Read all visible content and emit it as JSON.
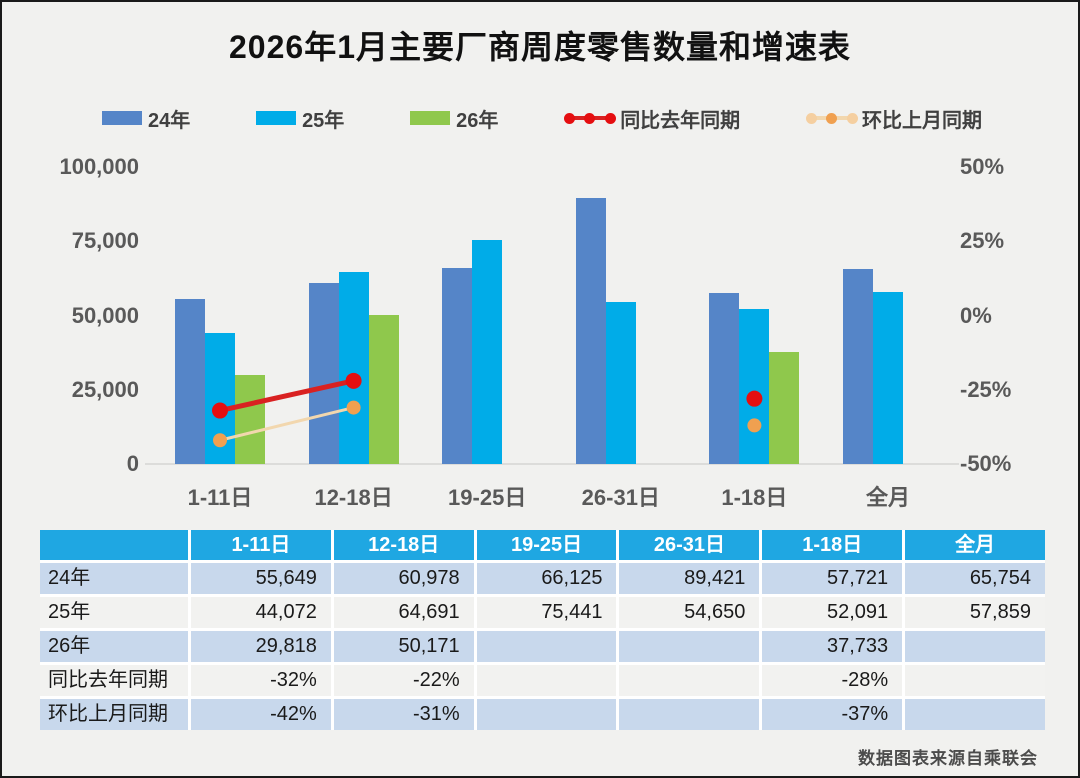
{
  "page": {
    "title": "2026年1月主要厂商周度零售数量和增速表",
    "footer": "数据图表来源自乘联会"
  },
  "colors": {
    "background": "#F1F1EF",
    "bar_24": "#5585C8",
    "bar_25": "#00ACE8",
    "bar_26": "#8FC84C",
    "yoy_line": "#D92121",
    "yoy_dot": "#E50E10",
    "mom_line": "#F2D7AE",
    "mom_dot": "#F0A050",
    "mom_dot_pale": "#F5CFA0",
    "table_header_bg": "#1FA7E2",
    "table_row_shaded": "#C8D8EC",
    "table_row_plain": "#F2F2F0",
    "axis_text": "#595959",
    "axis_line": "#DCDCDA"
  },
  "legend": {
    "items": [
      {
        "label": "24年",
        "type": "bar",
        "color": "#5585C8"
      },
      {
        "label": "25年",
        "type": "bar",
        "color": "#00ACE8"
      },
      {
        "label": "26年",
        "type": "bar",
        "color": "#8FC84C"
      },
      {
        "label": "同比去年同期",
        "type": "line",
        "dot_color": "#E50E10",
        "line_color": "#D92121",
        "uniform_dots": true
      },
      {
        "label": "环比上月同期",
        "type": "line",
        "dot_color": "#F0A050",
        "line_color": "#F2D7AE",
        "uniform_dots": false,
        "pale_dot_color": "#F5CFA0"
      }
    ]
  },
  "chart_data": {
    "type": "bar",
    "title": "2026年1月主要厂商周度零售数量和增速表",
    "categories": [
      "1-11日",
      "12-18日",
      "19-25日",
      "26-31日",
      "1-18日",
      "全月"
    ],
    "series": [
      {
        "name": "24年",
        "kind": "bar",
        "color": "#5585C8",
        "values": [
          55649,
          60978,
          66125,
          89421,
          57721,
          65754
        ]
      },
      {
        "name": "25年",
        "kind": "bar",
        "color": "#00ACE8",
        "values": [
          44072,
          64691,
          75441,
          54650,
          52091,
          57859
        ]
      },
      {
        "name": "26年",
        "kind": "bar",
        "color": "#8FC84C",
        "values": [
          29818,
          50171,
          null,
          null,
          37733,
          null
        ]
      },
      {
        "name": "同比去年同期",
        "kind": "line",
        "axis": "right",
        "line_color": "#D92121",
        "dot_color": "#E50E10",
        "line_width": 5,
        "dot_r": 8,
        "values": [
          -32,
          -22,
          null,
          null,
          -28,
          null
        ]
      },
      {
        "name": "环比上月同期",
        "kind": "line",
        "axis": "right",
        "line_color": "#F2D7AE",
        "dot_color": "#F0A050",
        "line_width": 3,
        "dot_r": 7,
        "values": [
          -42,
          -31,
          null,
          null,
          -37,
          null
        ]
      }
    ],
    "left_axis": {
      "ticks": [
        "100,000",
        "75,000",
        "50,000",
        "25,000",
        "0"
      ],
      "min": 0,
      "max": 100000
    },
    "right_axis": {
      "ticks": [
        "50%",
        "25%",
        "0%",
        "-25%",
        "-50%"
      ],
      "min": -50,
      "max": 50
    },
    "grid": false,
    "legend_position": "top"
  },
  "table": {
    "headers": [
      "",
      "1-11日",
      "12-18日",
      "19-25日",
      "26-31日",
      "1-18日",
      "全月"
    ],
    "rows": [
      {
        "label": "24年",
        "cells": [
          "55,649",
          "60,978",
          "66,125",
          "89,421",
          "57,721",
          "65,754"
        ]
      },
      {
        "label": "25年",
        "cells": [
          "44,072",
          "64,691",
          "75,441",
          "54,650",
          "52,091",
          "57,859"
        ]
      },
      {
        "label": "26年",
        "cells": [
          "29,818",
          "50,171",
          "",
          "",
          "37,733",
          ""
        ]
      },
      {
        "label": "同比去年同期",
        "cells": [
          "-32%",
          "-22%",
          "",
          "",
          "-28%",
          ""
        ]
      },
      {
        "label": "环比上月同期",
        "cells": [
          "-42%",
          "-31%",
          "",
          "",
          "-37%",
          ""
        ]
      }
    ]
  }
}
